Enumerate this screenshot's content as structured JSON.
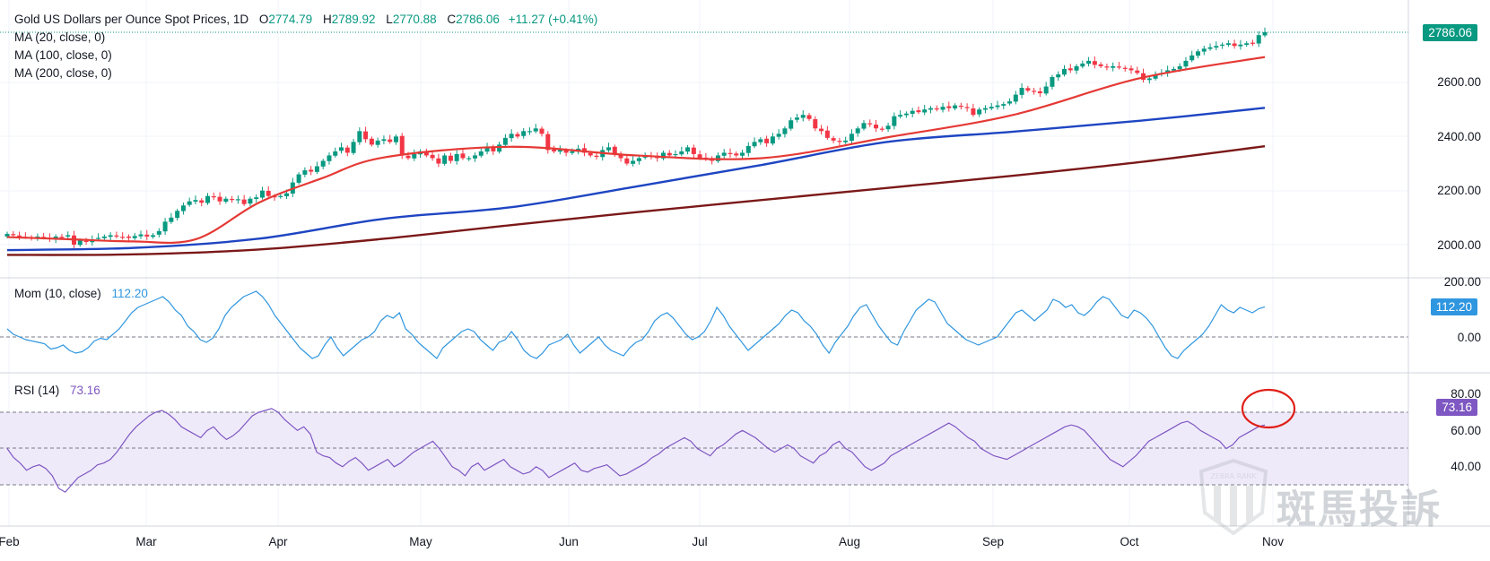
{
  "legend": {
    "symbol": "Gold US Dollars per Ounce Spot Prices, 1D",
    "open_label": "O",
    "open": "2774.79",
    "high_label": "H",
    "high": "2789.92",
    "low_label": "L",
    "low": "2770.88",
    "close_label": "C",
    "close": "2786.06",
    "change": "+11.27 (+0.41%)",
    "ma20": "MA (20, close, 0)",
    "ma100": "MA (100, close, 0)",
    "ma200": "MA (200, close, 0)"
  },
  "mom": {
    "label": "Mom (10, close)",
    "value": "112.20"
  },
  "rsi": {
    "label": "RSI (14)",
    "value": "73.16"
  },
  "badges": {
    "price": "2786.06",
    "mom": "112.20",
    "rsi": "73.16"
  },
  "colors": {
    "up": "#089981",
    "down": "#f23645",
    "ma20": "#e53935",
    "ma100": "#1e45c2",
    "ma200": "#7b1818",
    "mom": "#2f96e0",
    "rsi": "#7e57c2",
    "rsi_band": "#efeafa",
    "annotation": "#e0201a"
  },
  "watermark_text": "斑馬投訴",
  "watermark_logo_text": "ZEBRA RANK",
  "chart_data": [
    {
      "type": "candlestick",
      "title": "Gold US Dollars per Ounce Spot Prices, 1D",
      "x_ticks": [
        "Feb",
        "Mar",
        "Apr",
        "May",
        "Jun",
        "Jul",
        "Aug",
        "Sep",
        "Oct",
        "Nov"
      ],
      "y_ticks": [
        "2600.00",
        "2400.00",
        "2200.00",
        "2000.00"
      ],
      "ylim": [
        1980,
        2800
      ],
      "grid": true,
      "last_close": 2786.06,
      "close": [
        2040,
        2035,
        2030,
        2028,
        2025,
        2030,
        2026,
        2020,
        2030,
        2028,
        2035,
        2000,
        2015,
        2010,
        2020,
        2025,
        2030,
        2035,
        2030,
        2028,
        2025,
        2032,
        2038,
        2030,
        2035,
        2050,
        2085,
        2100,
        2125,
        2145,
        2160,
        2165,
        2155,
        2180,
        2175,
        2160,
        2170,
        2165,
        2168,
        2150,
        2170,
        2175,
        2200,
        2180,
        2175,
        2180,
        2190,
        2230,
        2260,
        2275,
        2270,
        2290,
        2310,
        2330,
        2345,
        2360,
        2340,
        2380,
        2420,
        2390,
        2370,
        2385,
        2390,
        2380,
        2400,
        2330,
        2320,
        2335,
        2345,
        2330,
        2320,
        2300,
        2330,
        2310,
        2335,
        2320,
        2320,
        2330,
        2345,
        2360,
        2345,
        2370,
        2395,
        2410,
        2400,
        2420,
        2420,
        2430,
        2410,
        2350,
        2345,
        2350,
        2340,
        2345,
        2355,
        2340,
        2330,
        2325,
        2350,
        2360,
        2335,
        2320,
        2300,
        2310,
        2320,
        2330,
        2325,
        2320,
        2340,
        2330,
        2335,
        2345,
        2360,
        2335,
        2320,
        2320,
        2310,
        2330,
        2340,
        2335,
        2330,
        2340,
        2365,
        2380,
        2390,
        2375,
        2400,
        2410,
        2430,
        2460,
        2470,
        2480,
        2465,
        2430,
        2420,
        2395,
        2385,
        2380,
        2385,
        2410,
        2430,
        2450,
        2445,
        2430,
        2425,
        2440,
        2475,
        2480,
        2485,
        2495,
        2490,
        2500,
        2505,
        2500,
        2510,
        2505,
        2515,
        2510,
        2505,
        2480,
        2500,
        2505,
        2510,
        2515,
        2520,
        2530,
        2555,
        2580,
        2570,
        2565,
        2560,
        2585,
        2620,
        2630,
        2650,
        2645,
        2660,
        2670,
        2680,
        2665,
        2660,
        2655,
        2660,
        2655,
        2650,
        2645,
        2635,
        2610,
        2615,
        2630,
        2635,
        2645,
        2650,
        2660,
        2680,
        2700,
        2715,
        2725,
        2730,
        2735,
        2740,
        2745,
        2735,
        2740,
        2745,
        2745,
        2775,
        2786
      ]
    },
    {
      "type": "line",
      "name": "MA (20, close, 0)",
      "x": [
        0,
        0.05,
        0.1,
        0.15,
        0.2,
        0.25,
        0.3,
        0.4,
        0.5,
        0.6,
        0.7,
        0.8,
        0.9,
        1
      ],
      "values": [
        2028,
        2020,
        2012,
        2020,
        2155,
        2245,
        2323,
        2362,
        2330,
        2320,
        2397,
        2480,
        2615,
        2694
      ]
    },
    {
      "type": "line",
      "name": "MA (100, close, 0)",
      "x": [
        0,
        0.1,
        0.2,
        0.3,
        0.4,
        0.5,
        0.6,
        0.7,
        0.8,
        0.9,
        1
      ],
      "values": [
        1980,
        1988,
        2022,
        2096,
        2138,
        2215,
        2295,
        2380,
        2418,
        2458,
        2506
      ]
    },
    {
      "type": "line",
      "name": "MA (200, close, 0)",
      "x": [
        0,
        0.1,
        0.2,
        0.3,
        0.4,
        0.5,
        0.6,
        0.7,
        0.8,
        0.9,
        1
      ],
      "values": [
        1962,
        1964,
        1982,
        2022,
        2072,
        2120,
        2165,
        2210,
        2255,
        2305,
        2364
      ]
    },
    {
      "type": "line",
      "title": "Mom (10, close)",
      "y_ticks": [
        "200.00",
        "0.00"
      ],
      "ylim": [
        -100,
        200
      ],
      "zero_line": 0,
      "last": 112.2,
      "values": [
        30,
        10,
        0,
        -10,
        -15,
        -20,
        -25,
        -45,
        -40,
        -30,
        -50,
        -60,
        -55,
        -40,
        -15,
        -5,
        -10,
        10,
        30,
        60,
        90,
        110,
        120,
        130,
        140,
        150,
        130,
        100,
        80,
        40,
        20,
        -10,
        -20,
        -5,
        30,
        80,
        110,
        130,
        150,
        160,
        170,
        150,
        120,
        80,
        50,
        20,
        -10,
        -40,
        -60,
        -80,
        -70,
        -30,
        0,
        -40,
        -70,
        -50,
        -30,
        -10,
        0,
        20,
        60,
        80,
        70,
        90,
        30,
        10,
        -20,
        -40,
        -60,
        -80,
        -40,
        -20,
        0,
        20,
        30,
        20,
        -10,
        -30,
        -50,
        -20,
        -10,
        20,
        -10,
        -50,
        -70,
        -80,
        -60,
        -30,
        -20,
        -10,
        10,
        -30,
        -60,
        -40,
        -20,
        0,
        -30,
        -50,
        -60,
        -70,
        -40,
        -20,
        -10,
        20,
        60,
        80,
        90,
        70,
        40,
        10,
        -10,
        0,
        20,
        60,
        110,
        80,
        40,
        10,
        -20,
        -50,
        -30,
        -10,
        10,
        30,
        50,
        80,
        100,
        90,
        60,
        40,
        10,
        -30,
        -60,
        -20,
        10,
        40,
        80,
        110,
        120,
        80,
        40,
        10,
        -20,
        -30,
        20,
        60,
        100,
        120,
        140,
        130,
        90,
        50,
        30,
        10,
        -10,
        -20,
        -30,
        -20,
        -10,
        0,
        30,
        60,
        90,
        100,
        80,
        60,
        80,
        100,
        140,
        130,
        110,
        120,
        90,
        80,
        100,
        130,
        150,
        140,
        110,
        80,
        70,
        100,
        90,
        70,
        40,
        0,
        -40,
        -70,
        -80,
        -50,
        -30,
        -10,
        10,
        40,
        80,
        120,
        100,
        90,
        110,
        100,
        90,
        105,
        112
      ]
    },
    {
      "type": "line",
      "title": "RSI (14)",
      "y_ticks": [
        "80.00",
        "60.00",
        "40.00"
      ],
      "ylim": [
        30,
        85
      ],
      "band": [
        30,
        70
      ],
      "mid_line": 50,
      "last": 73.16,
      "values": [
        60,
        55,
        52,
        48,
        50,
        51,
        49,
        45,
        38,
        36,
        40,
        44,
        46,
        48,
        51,
        52,
        54,
        58,
        63,
        68,
        72,
        75,
        78,
        80,
        81,
        79,
        76,
        72,
        70,
        68,
        66,
        70,
        72,
        68,
        65,
        67,
        70,
        74,
        78,
        80,
        81,
        82,
        80,
        76,
        73,
        70,
        72,
        68,
        58,
        56,
        55,
        52,
        50,
        53,
        55,
        52,
        48,
        50,
        52,
        54,
        50,
        52,
        55,
        58,
        60,
        62,
        64,
        60,
        55,
        50,
        48,
        45,
        50,
        52,
        48,
        50,
        52,
        54,
        50,
        48,
        46,
        47,
        50,
        48,
        44,
        46,
        48,
        50,
        52,
        48,
        47,
        49,
        50,
        51,
        48,
        45,
        46,
        48,
        50,
        52,
        55,
        57,
        60,
        62,
        64,
        66,
        64,
        60,
        58,
        56,
        60,
        62,
        65,
        68,
        70,
        68,
        66,
        63,
        60,
        58,
        60,
        62,
        60,
        56,
        54,
        52,
        56,
        58,
        62,
        64,
        60,
        58,
        54,
        50,
        48,
        50,
        52,
        56,
        58,
        60,
        62,
        64,
        66,
        68,
        70,
        72,
        74,
        72,
        69,
        66,
        64,
        60,
        58,
        56,
        55,
        54,
        56,
        58,
        60,
        62,
        64,
        66,
        68,
        70,
        72,
        73,
        72,
        70,
        66,
        62,
        58,
        54,
        52,
        50,
        53,
        56,
        60,
        64,
        66,
        68,
        70,
        72,
        74,
        75,
        73,
        70,
        68,
        66,
        64,
        60,
        62,
        66,
        68,
        70,
        72,
        73
      ]
    }
  ]
}
